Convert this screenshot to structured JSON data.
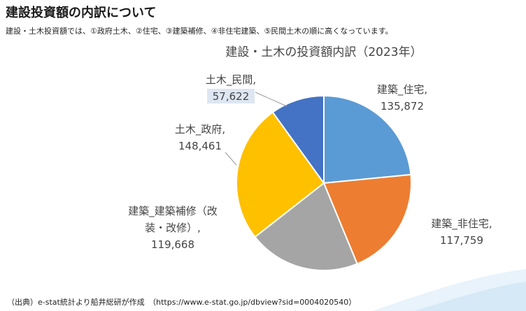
{
  "header": {
    "title": "建設投資額の内訳について",
    "subtitle": "建設・土木投資額では、①政府土木、②住宅、③建築補修、④非住宅建築、⑤民間土木の順に高くなっています。"
  },
  "footer": {
    "source": "（出典）e-stat統計より船井総研が作成　（https://www.e-stat.go.jp/dbview?sid=0004020540）"
  },
  "colors": {
    "slice_outline": "#ffffff",
    "label_text": "#444444",
    "highlight_bg": "#dde6f2"
  },
  "chart_data": {
    "type": "pie",
    "title": "建設・土木の投資額内訳（2023年）",
    "start_angle_deg": 0,
    "direction": "clockwise",
    "legend": "none",
    "slices": [
      {
        "name": "建築_住宅",
        "value": 135872,
        "value_label": "135,872",
        "label_lines": [
          "建築_住宅,"
        ],
        "color": "#5b9bd5"
      },
      {
        "name": "建築_非住宅",
        "value": 117759,
        "value_label": "117,759",
        "label_lines": [
          "建築_非住宅,"
        ],
        "color": "#ed7d31"
      },
      {
        "name": "建築_建築補修（改装・改修）",
        "value": 119668,
        "value_label": "119,668",
        "label_lines": [
          "建築_建築補修（改",
          "装・改修）,"
        ],
        "color": "#a5a5a5"
      },
      {
        "name": "土木_政府",
        "value": 148461,
        "value_label": "148,461",
        "label_lines": [
          "土木_政府,"
        ],
        "color": "#ffc000"
      },
      {
        "name": "土木_民間",
        "value": 57622,
        "value_label": "57,622",
        "label_lines": [
          "土木_民間,"
        ],
        "color": "#4472c4",
        "highlighted": true
      }
    ]
  }
}
